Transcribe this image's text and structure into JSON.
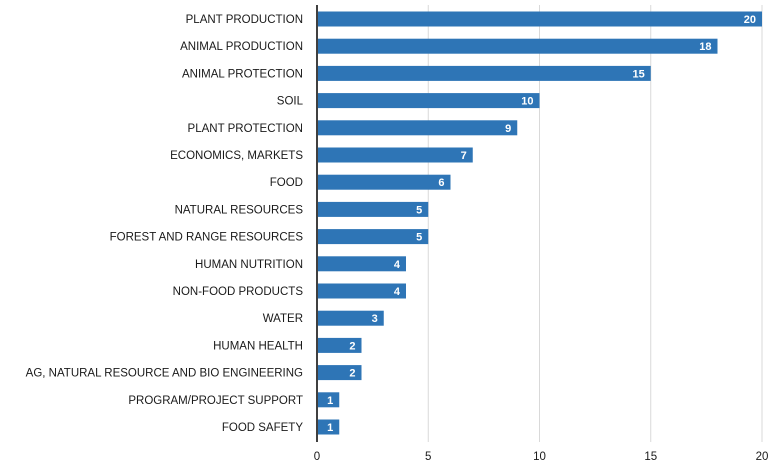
{
  "chart_data": {
    "type": "bar",
    "orientation": "horizontal",
    "categories": [
      "PLANT PRODUCTION",
      "ANIMAL PRODUCTION",
      "ANIMAL PROTECTION",
      "SOIL",
      "PLANT PROTECTION",
      "ECONOMICS, MARKETS",
      "FOOD",
      "NATURAL RESOURCES",
      "FOREST AND RANGE RESOURCES",
      "HUMAN NUTRITION",
      "NON-FOOD PRODUCTS",
      "WATER",
      "HUMAN HEALTH",
      "AG, NATURAL RESOURCE AND BIO ENGINEERING",
      "PROGRAM/PROJECT SUPPORT",
      "FOOD SAFETY"
    ],
    "values": [
      20,
      18,
      15,
      10,
      9,
      7,
      6,
      5,
      5,
      4,
      4,
      3,
      2,
      2,
      1,
      1
    ],
    "data_labels": [
      "20",
      "18",
      "15",
      "10",
      "9",
      "7",
      "6",
      "5",
      "5",
      "4",
      "4",
      "3",
      "2",
      "2",
      "1",
      "1"
    ],
    "xlim": [
      0,
      20
    ],
    "xticks": [
      0,
      5,
      10,
      15,
      20
    ],
    "xtick_labels": [
      "0",
      "5",
      "10",
      "15",
      "20"
    ],
    "grid": "vertical",
    "bar_color": "#2e75b6",
    "grid_color": "#d9d9d9",
    "axis_color": "#000000"
  }
}
